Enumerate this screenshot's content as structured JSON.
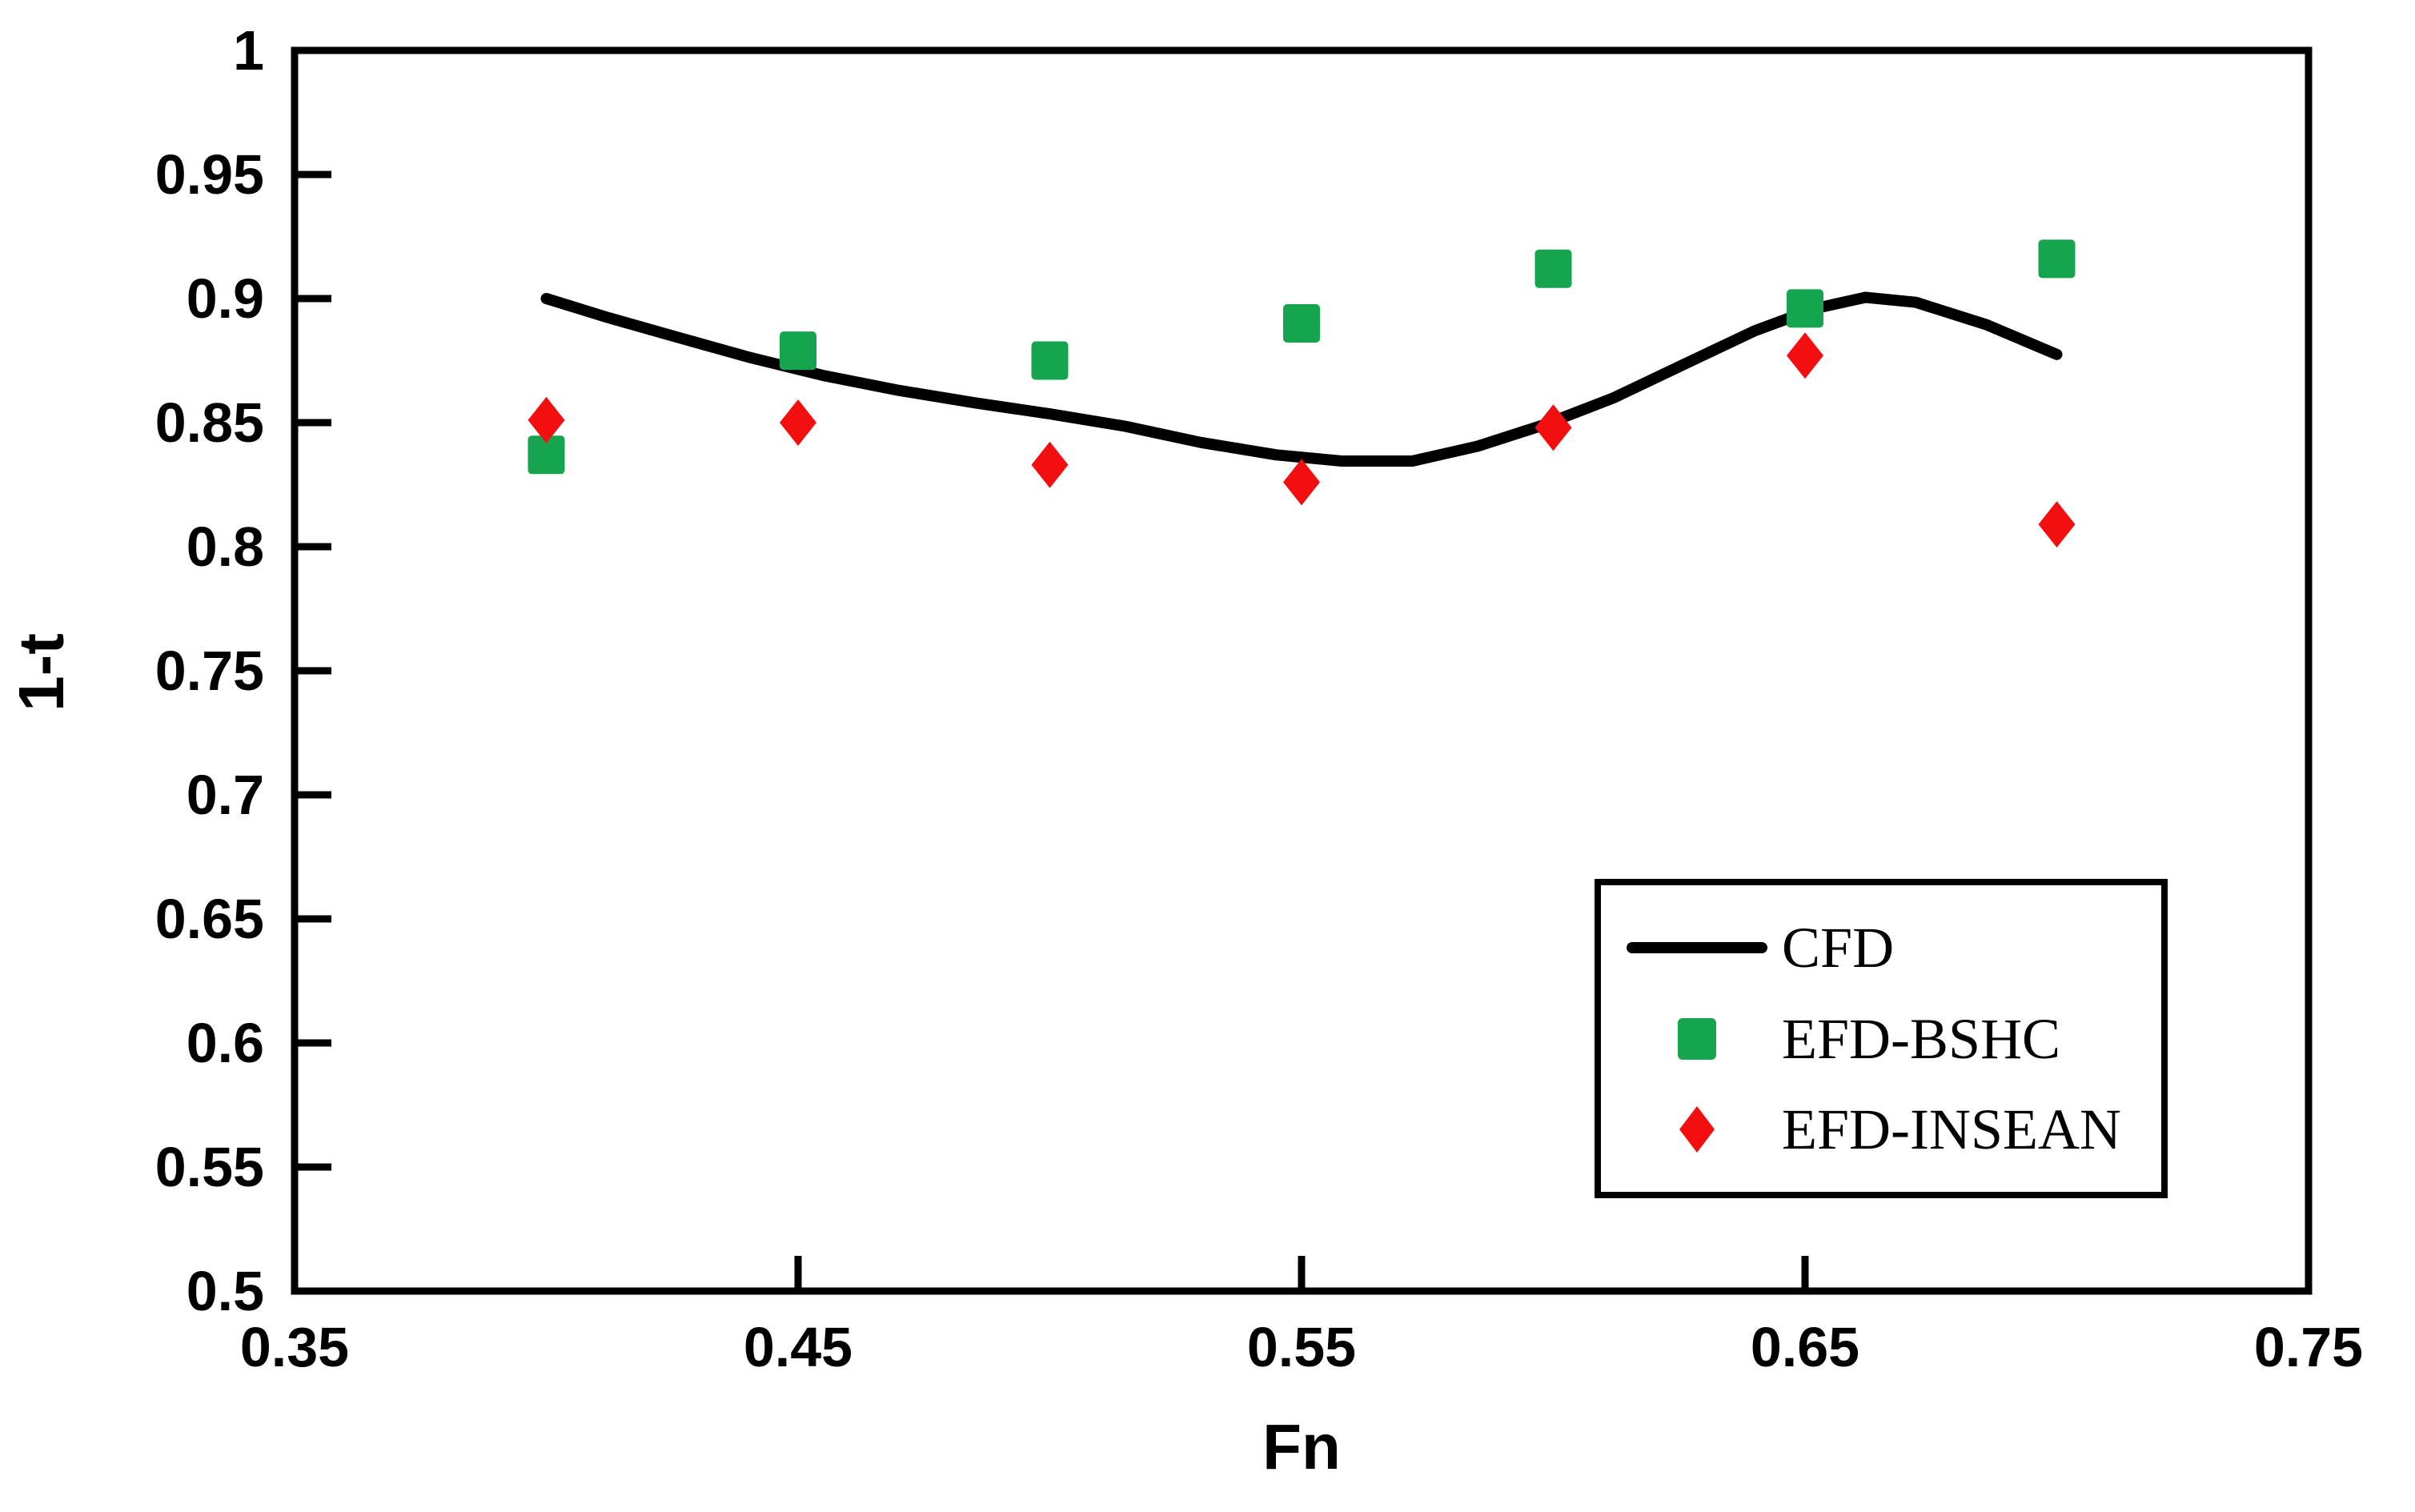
{
  "figure": {
    "background": "#ffffff",
    "frame_color": "#000000"
  },
  "legend": {
    "items": [
      {
        "label": "CFD",
        "type": "line",
        "color": "#000000"
      },
      {
        "label": "EFD-BSHC",
        "type": "square",
        "color": "#17A44E"
      },
      {
        "label": "EFD-INSEAN",
        "type": "diamond",
        "color": "#F30F0F"
      }
    ]
  },
  "chart_data": {
    "type": "line",
    "title": "",
    "xlabel": "Fn",
    "ylabel": "1-t",
    "xlim": [
      0.35,
      0.75
    ],
    "ylim": [
      0.5,
      1.0
    ],
    "grid": false,
    "legend_position": "lower right",
    "xtick_values": [
      0.35,
      0.45,
      0.55,
      0.65,
      0.75
    ],
    "xtick_labels": [
      "0.35",
      "0.45",
      "0.55",
      "0.65",
      "0.75"
    ],
    "ytick_values": [
      1.0,
      0.95,
      0.9,
      0.85,
      0.8,
      0.75,
      0.7,
      0.65,
      0.6,
      0.55,
      0.5
    ],
    "ytick_labels": [
      "1",
      "0.95",
      "0.9",
      "0.85",
      "0.8",
      "0.75",
      "0.7",
      "0.65",
      "0.6",
      "0.55",
      "0.5"
    ],
    "series": [
      {
        "name": "CFD",
        "type": "line",
        "color": "#000000",
        "points": [
          [
            0.4,
            0.9
          ],
          [
            0.412,
            0.8925
          ],
          [
            0.425,
            0.885
          ],
          [
            0.44,
            0.8765
          ],
          [
            0.455,
            0.869
          ],
          [
            0.47,
            0.863
          ],
          [
            0.485,
            0.858
          ],
          [
            0.5,
            0.8535
          ],
          [
            0.515,
            0.8485
          ],
          [
            0.53,
            0.842
          ],
          [
            0.545,
            0.837
          ],
          [
            0.558,
            0.8345
          ],
          [
            0.572,
            0.8345
          ],
          [
            0.585,
            0.8405
          ],
          [
            0.598,
            0.849
          ],
          [
            0.612,
            0.86
          ],
          [
            0.626,
            0.8735
          ],
          [
            0.64,
            0.887
          ],
          [
            0.652,
            0.896
          ],
          [
            0.662,
            0.9005
          ],
          [
            0.672,
            0.8985
          ],
          [
            0.686,
            0.8895
          ],
          [
            0.7,
            0.8775
          ]
        ]
      },
      {
        "name": "EFD-BSHC",
        "type": "scatter",
        "marker": "square",
        "color": "#17A44E",
        "x": [
          0.4,
          0.45,
          0.5,
          0.55,
          0.6,
          0.65,
          0.7
        ],
        "y": [
          0.837,
          0.879,
          0.875,
          0.89,
          0.912,
          0.896,
          0.916
        ]
      },
      {
        "name": "EFD-INSEAN",
        "type": "scatter",
        "marker": "diamond",
        "color": "#F30F0F",
        "x": [
          0.4,
          0.45,
          0.5,
          0.55,
          0.6,
          0.65,
          0.7
        ],
        "y": [
          0.851,
          0.85,
          0.833,
          0.826,
          0.848,
          0.877,
          0.809
        ]
      }
    ]
  }
}
